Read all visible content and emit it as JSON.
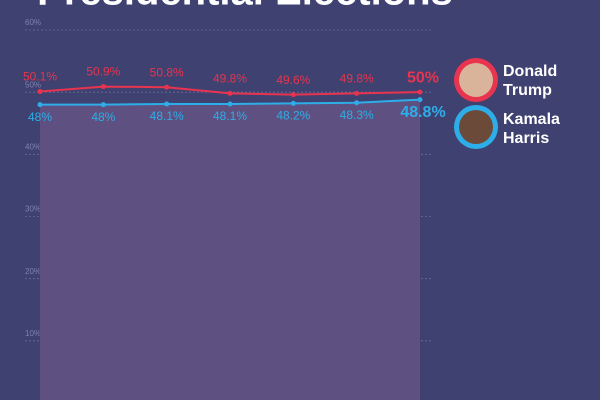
{
  "chart_data": {
    "type": "line",
    "title": "Presidential Elections",
    "categories": [
      null,
      null,
      null,
      null,
      null,
      null,
      null
    ],
    "series": [
      {
        "name": "Donald Trump",
        "color": "#e8344e",
        "values": [
          50.1,
          50.9,
          50.8,
          49.8,
          49.6,
          49.8,
          50
        ],
        "value_labels": [
          "50.1%",
          "50.9%",
          "50.8%",
          "49.8%",
          "49.6%",
          "49.8%",
          "50%"
        ]
      },
      {
        "name": "Kamala Harris",
        "color": "#2eaee8",
        "values": [
          48,
          48,
          48.1,
          48.1,
          48.2,
          48.3,
          48.8
        ],
        "value_labels": [
          "48%",
          "48%",
          "48.1%",
          "48.1%",
          "48.2%",
          "48.3%",
          "48.8%"
        ]
      }
    ],
    "ylim": [
      0,
      60
    ],
    "yticks": [
      {
        "value": 10,
        "label": "10%"
      },
      {
        "value": 20,
        "label": "20%"
      },
      {
        "value": 30,
        "label": "30%"
      },
      {
        "value": 40,
        "label": "40%"
      },
      {
        "value": 50,
        "label": "50%"
      },
      {
        "value": 60,
        "label": "60%"
      }
    ],
    "grid": true
  }
}
